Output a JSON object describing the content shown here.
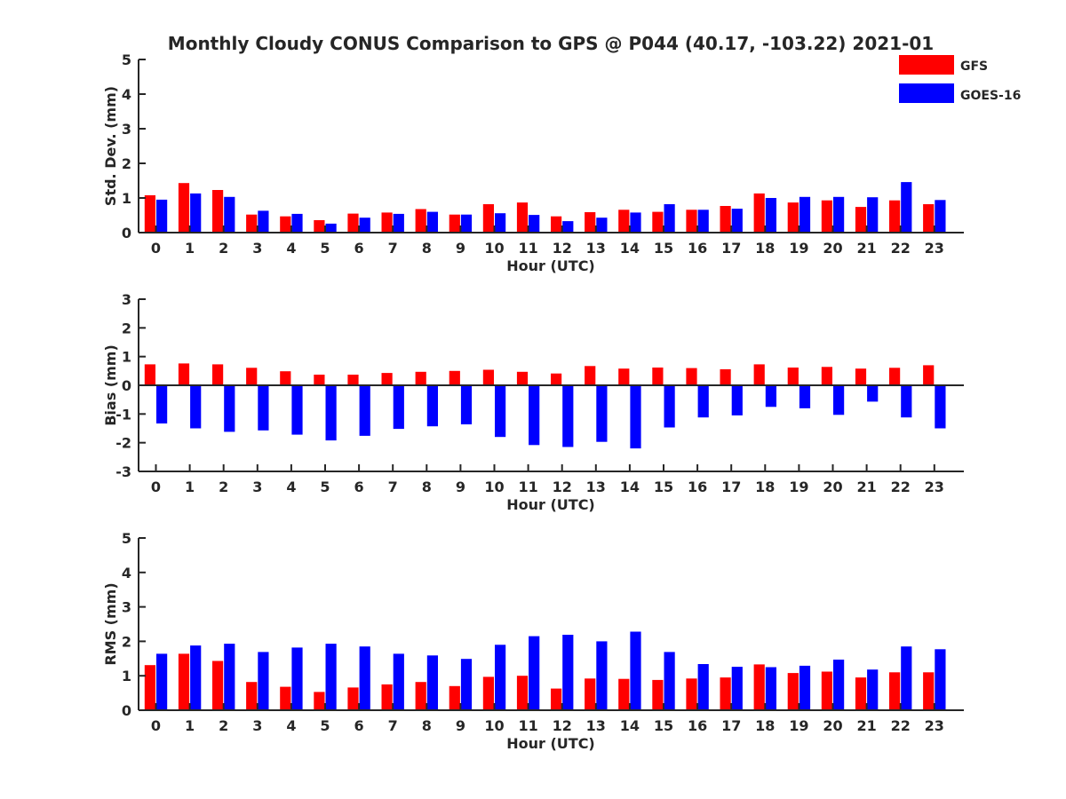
{
  "chart_data": {
    "type": "bar",
    "title": "Monthly Cloudy CONUS Comparison to GPS @ P044 (40.17, -103.22) 2021-01",
    "legend": {
      "placement": "top-right",
      "entries": [
        {
          "name": "GFS",
          "color": "#ff0000"
        },
        {
          "name": "GOES-16",
          "color": "#0000ff"
        }
      ]
    },
    "categories": [
      "0",
      "1",
      "2",
      "3",
      "4",
      "5",
      "6",
      "7",
      "8",
      "9",
      "10",
      "11",
      "12",
      "13",
      "14",
      "15",
      "16",
      "17",
      "18",
      "19",
      "20",
      "21",
      "22",
      "23"
    ],
    "panels": [
      {
        "id": "stddev",
        "xlabel": "Hour (UTC)",
        "ylabel": "Std. Dev. (mm)",
        "ylim": [
          0,
          5
        ],
        "yticks": [
          "0",
          "1",
          "2",
          "3",
          "4",
          "5"
        ],
        "series": [
          {
            "name": "GFS",
            "color": "#ff0000",
            "values": [
              1.08,
              1.43,
              1.23,
              0.52,
              0.47,
              0.36,
              0.55,
              0.58,
              0.68,
              0.52,
              0.82,
              0.87,
              0.47,
              0.59,
              0.66,
              0.6,
              0.66,
              0.77,
              1.13,
              0.87,
              0.93,
              0.74,
              0.93,
              0.82
            ]
          },
          {
            "name": "GOES-16",
            "color": "#0000ff",
            "values": [
              0.95,
              1.13,
              1.03,
              0.63,
              0.54,
              0.26,
              0.43,
              0.54,
              0.6,
              0.52,
              0.56,
              0.51,
              0.33,
              0.43,
              0.58,
              0.82,
              0.66,
              0.69,
              1.0,
              1.03,
              1.03,
              1.02,
              1.46,
              0.94
            ]
          }
        ]
      },
      {
        "id": "bias",
        "xlabel": "Hour (UTC)",
        "ylabel": "Bias (mm)",
        "ylim": [
          -3,
          3
        ],
        "yticks": [
          "-3",
          "-2",
          "-1",
          "0",
          "1",
          "2",
          "3"
        ],
        "series": [
          {
            "name": "GFS",
            "color": "#ff0000",
            "values": [
              0.73,
              0.76,
              0.73,
              0.61,
              0.49,
              0.37,
              0.37,
              0.43,
              0.47,
              0.5,
              0.54,
              0.47,
              0.41,
              0.67,
              0.58,
              0.62,
              0.6,
              0.56,
              0.73,
              0.62,
              0.64,
              0.58,
              0.61,
              0.7
            ]
          },
          {
            "name": "GOES-16",
            "color": "#0000ff",
            "values": [
              -1.33,
              -1.5,
              -1.62,
              -1.57,
              -1.72,
              -1.92,
              -1.76,
              -1.52,
              -1.43,
              -1.36,
              -1.8,
              -2.08,
              -2.15,
              -1.97,
              -2.2,
              -1.47,
              -1.12,
              -1.05,
              -0.75,
              -0.8,
              -1.03,
              -0.57,
              -1.12,
              -1.5
            ]
          }
        ]
      },
      {
        "id": "rms",
        "xlabel": "Hour (UTC)",
        "ylabel": "RMS (mm)",
        "ylim": [
          0,
          5
        ],
        "yticks": [
          "0",
          "1",
          "2",
          "3",
          "4",
          "5"
        ],
        "series": [
          {
            "name": "GFS",
            "color": "#ff0000",
            "values": [
              1.31,
              1.64,
              1.43,
              0.82,
              0.68,
              0.53,
              0.66,
              0.75,
              0.82,
              0.7,
              0.97,
              1.0,
              0.63,
              0.92,
              0.91,
              0.88,
              0.92,
              0.95,
              1.33,
              1.08,
              1.12,
              0.95,
              1.1,
              1.1
            ]
          },
          {
            "name": "GOES-16",
            "color": "#0000ff",
            "values": [
              1.64,
              1.88,
              1.93,
              1.69,
              1.82,
              1.93,
              1.85,
              1.64,
              1.59,
              1.49,
              1.9,
              2.15,
              2.19,
              2.0,
              2.28,
              1.69,
              1.34,
              1.26,
              1.25,
              1.29,
              1.47,
              1.18,
              1.85,
              1.77
            ]
          }
        ]
      }
    ]
  }
}
